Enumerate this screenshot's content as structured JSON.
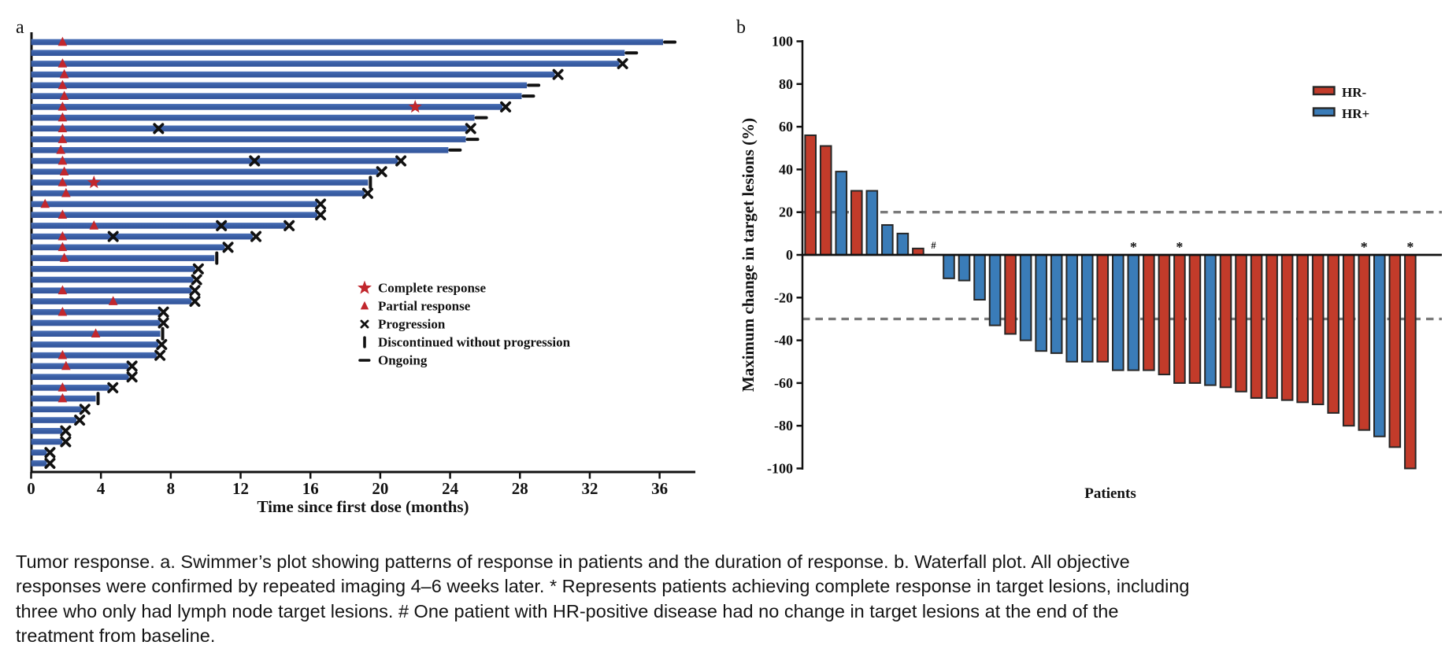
{
  "figure": {
    "panel_a_label": "a",
    "panel_b_label": "b"
  },
  "colors": {
    "swimmer_bar": "#3a5fa5",
    "response_marker": "#c1272d",
    "event_marker": "#111111",
    "axis": "#111111",
    "reference_line": "#7a7a7a",
    "hr_negative": "#c23b2a",
    "hr_positive": "#3a7cb8",
    "bar_border": "#262626"
  },
  "chart_data": [
    {
      "type": "swimmer",
      "xlabel": "Time since first dose (months)",
      "xticks": [
        0,
        4,
        8,
        12,
        16,
        20,
        24,
        28,
        32,
        36
      ],
      "xlim": [
        0,
        38
      ],
      "grid": false,
      "legend_position": "center-right",
      "legend": [
        {
          "marker": "star-icon",
          "label": "Complete response",
          "color": "#c1272d"
        },
        {
          "marker": "triangle-icon",
          "label": "Partial response",
          "color": "#c1272d"
        },
        {
          "marker": "x-icon",
          "label": "Progression",
          "color": "#111111"
        },
        {
          "marker": "vbar-icon",
          "label": "Discontinued without progression",
          "color": "#111111"
        },
        {
          "marker": "dash-icon",
          "label": "Ongoing",
          "color": "#111111"
        }
      ],
      "patients": [
        {
          "duration": 36.2,
          "end": "ongoing",
          "events": [
            {
              "type": "partial_response",
              "t": 1.8
            }
          ]
        },
        {
          "duration": 34.0,
          "end": "ongoing",
          "events": []
        },
        {
          "duration": 33.7,
          "end": "progression",
          "events": [
            {
              "type": "partial_response",
              "t": 1.8
            }
          ]
        },
        {
          "duration": 30.0,
          "end": "progression",
          "events": [
            {
              "type": "partial_response",
              "t": 1.9
            }
          ]
        },
        {
          "duration": 28.4,
          "end": "ongoing",
          "events": [
            {
              "type": "partial_response",
              "t": 1.8
            }
          ]
        },
        {
          "duration": 28.1,
          "end": "ongoing",
          "events": [
            {
              "type": "partial_response",
              "t": 1.9
            }
          ]
        },
        {
          "duration": 27.0,
          "end": "progression",
          "events": [
            {
              "type": "partial_response",
              "t": 1.8
            },
            {
              "type": "complete_response",
              "t": 22.0
            }
          ]
        },
        {
          "duration": 25.4,
          "end": "ongoing",
          "events": [
            {
              "type": "partial_response",
              "t": 1.8
            }
          ]
        },
        {
          "duration": 25.0,
          "end": "progression",
          "events": [
            {
              "type": "partial_response",
              "t": 1.8
            },
            {
              "type": "progression",
              "t": 7.3
            }
          ]
        },
        {
          "duration": 24.9,
          "end": "ongoing",
          "events": [
            {
              "type": "partial_response",
              "t": 1.8
            }
          ]
        },
        {
          "duration": 23.9,
          "end": "ongoing",
          "events": [
            {
              "type": "partial_response",
              "t": 1.7
            }
          ]
        },
        {
          "duration": 21.0,
          "end": "progression",
          "events": [
            {
              "type": "partial_response",
              "t": 1.8
            },
            {
              "type": "progression",
              "t": 12.8
            }
          ]
        },
        {
          "duration": 19.9,
          "end": "progression",
          "events": [
            {
              "type": "partial_response",
              "t": 1.9
            }
          ]
        },
        {
          "duration": 19.3,
          "end": "discontinued",
          "events": [
            {
              "type": "partial_response",
              "t": 1.8
            },
            {
              "type": "complete_response",
              "t": 3.6
            }
          ]
        },
        {
          "duration": 19.1,
          "end": "progression",
          "events": [
            {
              "type": "partial_response",
              "t": 2.0
            }
          ]
        },
        {
          "duration": 16.4,
          "end": "progression",
          "events": [
            {
              "type": "partial_response",
              "t": 0.8
            }
          ]
        },
        {
          "duration": 16.4,
          "end": "progression",
          "events": [
            {
              "type": "partial_response",
              "t": 1.8
            }
          ]
        },
        {
          "duration": 14.6,
          "end": "progression",
          "events": [
            {
              "type": "partial_response",
              "t": 3.6
            },
            {
              "type": "progression",
              "t": 10.9
            }
          ]
        },
        {
          "duration": 12.7,
          "end": "progression",
          "events": [
            {
              "type": "partial_response",
              "t": 1.8
            },
            {
              "type": "progression",
              "t": 4.7
            }
          ]
        },
        {
          "duration": 11.1,
          "end": "progression",
          "events": [
            {
              "type": "partial_response",
              "t": 1.8
            }
          ]
        },
        {
          "duration": 10.5,
          "end": "discontinued",
          "events": [
            {
              "type": "partial_response",
              "t": 1.9
            }
          ]
        },
        {
          "duration": 9.4,
          "end": "progression",
          "events": []
        },
        {
          "duration": 9.3,
          "end": "progression",
          "events": []
        },
        {
          "duration": 9.2,
          "end": "progression",
          "events": [
            {
              "type": "partial_response",
              "t": 1.8
            }
          ]
        },
        {
          "duration": 9.2,
          "end": "progression",
          "events": [
            {
              "type": "partial_response",
              "t": 4.7
            }
          ]
        },
        {
          "duration": 7.4,
          "end": "progression",
          "events": [
            {
              "type": "partial_response",
              "t": 1.8
            }
          ]
        },
        {
          "duration": 7.4,
          "end": "progression",
          "events": []
        },
        {
          "duration": 7.4,
          "end": "discontinued",
          "events": [
            {
              "type": "partial_response",
              "t": 3.7
            }
          ]
        },
        {
          "duration": 7.3,
          "end": "progression",
          "events": []
        },
        {
          "duration": 7.2,
          "end": "progression",
          "events": [
            {
              "type": "partial_response",
              "t": 1.8
            }
          ]
        },
        {
          "duration": 5.6,
          "end": "progression",
          "events": [
            {
              "type": "partial_response",
              "t": 2.0
            }
          ]
        },
        {
          "duration": 5.6,
          "end": "progression",
          "events": []
        },
        {
          "duration": 4.5,
          "end": "progression",
          "events": [
            {
              "type": "partial_response",
              "t": 1.8
            }
          ]
        },
        {
          "duration": 3.7,
          "end": "discontinued",
          "events": [
            {
              "type": "partial_response",
              "t": 1.8
            }
          ]
        },
        {
          "duration": 2.9,
          "end": "progression",
          "events": []
        },
        {
          "duration": 2.6,
          "end": "progression",
          "events": []
        },
        {
          "duration": 1.8,
          "end": "progression",
          "events": []
        },
        {
          "duration": 1.8,
          "end": "progression",
          "events": []
        },
        {
          "duration": 0.9,
          "end": "progression",
          "events": []
        },
        {
          "duration": 0.9,
          "end": "progression",
          "events": []
        }
      ]
    },
    {
      "type": "bar",
      "variant": "waterfall",
      "xlabel": "Patients",
      "ylabel": "Maximum change in target lesions (%)",
      "yticks": [
        100,
        80,
        60,
        40,
        20,
        0,
        -20,
        -40,
        -60,
        -80,
        -100
      ],
      "ylim": [
        -100,
        100
      ],
      "reference_lines": [
        20,
        -30
      ],
      "legend_position": "top-right",
      "legend": [
        {
          "label": "HR-",
          "color": "#c23b2a"
        },
        {
          "label": "HR+",
          "color": "#3a7cb8"
        }
      ],
      "series": [
        {
          "value": 56,
          "group": "HR-"
        },
        {
          "value": 51,
          "group": "HR-"
        },
        {
          "value": 39,
          "group": "HR+"
        },
        {
          "value": 30,
          "group": "HR-"
        },
        {
          "value": 30,
          "group": "HR+"
        },
        {
          "value": 14,
          "group": "HR+"
        },
        {
          "value": 10,
          "group": "HR+"
        },
        {
          "value": 3,
          "group": "HR-"
        },
        {
          "value": 0,
          "group": "HR+",
          "note": "#"
        },
        {
          "value": -11,
          "group": "HR+"
        },
        {
          "value": -12,
          "group": "HR+"
        },
        {
          "value": -21,
          "group": "HR+"
        },
        {
          "value": -33,
          "group": "HR+"
        },
        {
          "value": -37,
          "group": "HR-"
        },
        {
          "value": -40,
          "group": "HR+"
        },
        {
          "value": -45,
          "group": "HR+"
        },
        {
          "value": -46,
          "group": "HR+"
        },
        {
          "value": -50,
          "group": "HR+"
        },
        {
          "value": -50,
          "group": "HR+"
        },
        {
          "value": -50,
          "group": "HR-"
        },
        {
          "value": -54,
          "group": "HR+"
        },
        {
          "value": -54,
          "group": "HR+",
          "note": "*"
        },
        {
          "value": -54,
          "group": "HR-"
        },
        {
          "value": -56,
          "group": "HR-"
        },
        {
          "value": -60,
          "group": "HR-",
          "note": "*"
        },
        {
          "value": -60,
          "group": "HR-"
        },
        {
          "value": -61,
          "group": "HR+"
        },
        {
          "value": -62,
          "group": "HR-"
        },
        {
          "value": -64,
          "group": "HR-"
        },
        {
          "value": -67,
          "group": "HR-"
        },
        {
          "value": -67,
          "group": "HR-"
        },
        {
          "value": -68,
          "group": "HR-"
        },
        {
          "value": -69,
          "group": "HR-"
        },
        {
          "value": -70,
          "group": "HR-"
        },
        {
          "value": -74,
          "group": "HR-"
        },
        {
          "value": -80,
          "group": "HR-"
        },
        {
          "value": -82,
          "group": "HR-",
          "note": "*"
        },
        {
          "value": -85,
          "group": "HR+"
        },
        {
          "value": -90,
          "group": "HR-"
        },
        {
          "value": -100,
          "group": "HR-",
          "note": "*"
        }
      ]
    }
  ],
  "caption": {
    "text": "Tumor response. a. Swimmer’s plot showing patterns of response in patients and the duration of response. b. Waterfall plot. All objective responses were confirmed by repeated imaging 4–6 weeks later. * Represents patients achieving complete response in target lesions, including three who only had lymph node target lesions. # One patient with HR-positive disease had no change in target lesions at the end of the treatment from baseline."
  }
}
